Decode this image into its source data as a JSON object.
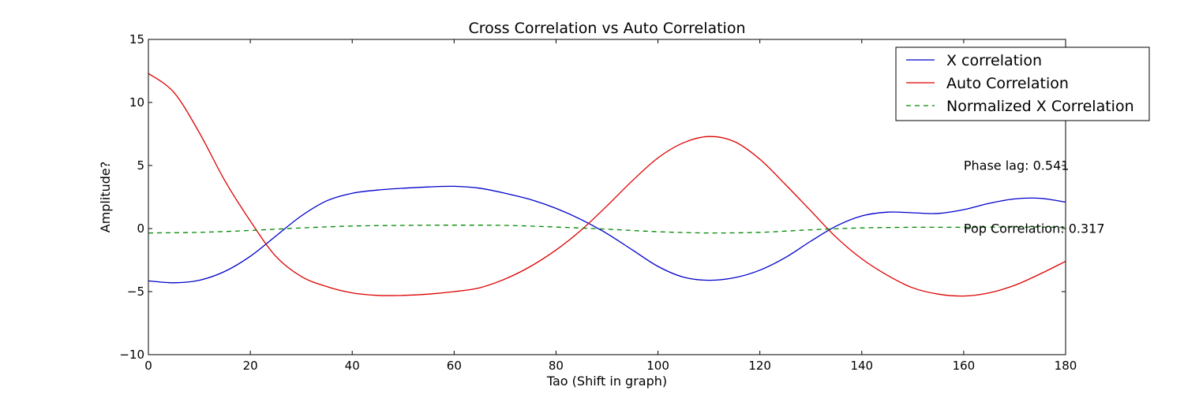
{
  "chart_data": {
    "type": "line",
    "title": "Cross Correlation vs Auto Correlation",
    "xlabel": "Tao (Shift in graph)",
    "ylabel": "Amplitude?",
    "xlim": [
      0,
      180
    ],
    "ylim": [
      -10,
      15
    ],
    "xticks": [
      "0",
      "20",
      "40",
      "60",
      "80",
      "100",
      "120",
      "140",
      "160",
      "180"
    ],
    "yticks": [
      "15",
      "10",
      "5",
      "0",
      "−5",
      "−10"
    ],
    "xtick_values": [
      0,
      20,
      40,
      60,
      80,
      100,
      120,
      140,
      160,
      180
    ],
    "ytick_values": [
      15,
      10,
      5,
      0,
      -5,
      -10
    ],
    "grid": false,
    "legend_position": "top-right",
    "series": [
      {
        "name": "X correlation",
        "color": "#0000cc",
        "style": "solid",
        "x": [
          0,
          5,
          10,
          15,
          20,
          25,
          30,
          35,
          40,
          45,
          50,
          55,
          60,
          65,
          70,
          75,
          80,
          85,
          90,
          95,
          100,
          105,
          110,
          115,
          120,
          125,
          130,
          135,
          140,
          145,
          150,
          155,
          160,
          165,
          170,
          175,
          180
        ],
        "y": [
          -4.15,
          -4.3,
          -4.1,
          -3.4,
          -2.2,
          -0.6,
          1.0,
          2.2,
          2.8,
          3.05,
          3.2,
          3.3,
          3.35,
          3.2,
          2.8,
          2.3,
          1.6,
          0.7,
          -0.4,
          -1.7,
          -3.0,
          -3.85,
          -4.1,
          -3.9,
          -3.3,
          -2.3,
          -1.0,
          0.2,
          1.0,
          1.3,
          1.25,
          1.2,
          1.5,
          2.0,
          2.35,
          2.4,
          2.1
        ]
      },
      {
        "name": "Auto Correlation",
        "color": "#dd0000",
        "style": "solid",
        "x": [
          0,
          5,
          10,
          15,
          20,
          25,
          30,
          35,
          40,
          45,
          50,
          55,
          60,
          65,
          70,
          75,
          80,
          85,
          90,
          95,
          100,
          105,
          110,
          115,
          120,
          125,
          130,
          135,
          140,
          145,
          150,
          155,
          160,
          165,
          170,
          175,
          180
        ],
        "y": [
          12.3,
          10.8,
          7.6,
          3.8,
          0.6,
          -2.2,
          -3.8,
          -4.6,
          -5.1,
          -5.3,
          -5.3,
          -5.2,
          -5.0,
          -4.7,
          -4.0,
          -3.0,
          -1.7,
          -0.1,
          1.8,
          3.8,
          5.6,
          6.8,
          7.3,
          6.9,
          5.5,
          3.5,
          1.4,
          -0.7,
          -2.4,
          -3.7,
          -4.7,
          -5.2,
          -5.35,
          -5.1,
          -4.5,
          -3.6,
          -2.6
        ]
      },
      {
        "name": "Normalized X Correlation",
        "color": "#008800",
        "style": "dashed",
        "x": [
          0,
          10,
          20,
          30,
          40,
          50,
          60,
          70,
          80,
          90,
          100,
          110,
          120,
          130,
          140,
          150,
          160,
          170,
          180
        ],
        "y": [
          -0.35,
          -0.3,
          -0.15,
          0.05,
          0.2,
          0.25,
          0.27,
          0.25,
          0.12,
          -0.05,
          -0.25,
          -0.35,
          -0.3,
          -0.1,
          0.05,
          0.1,
          0.1,
          0.12,
          0.1
        ]
      }
    ],
    "annotations": [
      {
        "text": "Phase lag: 0.541",
        "x": 160,
        "y": 5.0
      },
      {
        "text": "Pop Correlation: 0.317",
        "x": 160,
        "y": 0.0
      }
    ]
  }
}
